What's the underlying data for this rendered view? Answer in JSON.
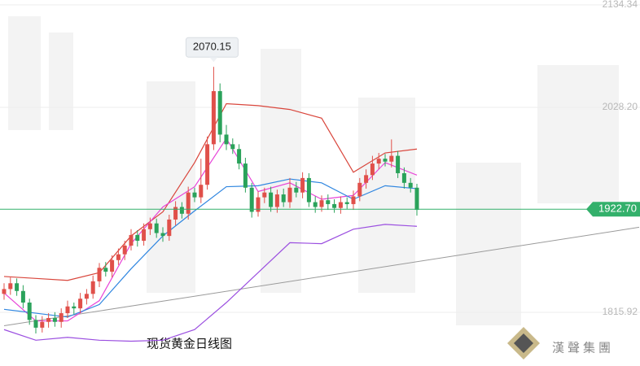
{
  "chart_data": {
    "type": "candlestick",
    "title": "现货黄金日线图",
    "watermark": "漢聲集團",
    "up_color": "#e0504a",
    "down_color": "#2aa25a",
    "ylim": [
      1760.3,
      2139.4
    ],
    "yticks": [
      2134.34,
      {
        "value": 2028.2,
        "label": "2028.20"
      },
      1815.92
    ],
    "grid": true,
    "current_price": {
      "value": 1922.7,
      "label": "1922.70",
      "color": "#33b06b"
    },
    "annotate_high_index": 33,
    "open": [
      1835,
      1840,
      1846,
      1838,
      1826,
      1808,
      1800,
      1806,
      1810,
      1806,
      1815,
      1822,
      1820,
      1830,
      1835,
      1848,
      1862,
      1858,
      1870,
      1876,
      1885,
      1896,
      1890,
      1902,
      1908,
      1898,
      1895,
      1912,
      1925,
      1918,
      1940,
      1935,
      1948,
      1990,
      2045,
      2000,
      1990,
      1985,
      1970,
      1945,
      1920,
      1935,
      1940,
      1925,
      1938,
      1930,
      1945,
      1940,
      1955,
      1930,
      1925,
      1932,
      1928,
      1924,
      1930,
      1928,
      1936,
      1950,
      1958,
      1970,
      1975,
      1972,
      1978,
      1960,
      1950,
      1945
    ],
    "high": [
      1846,
      1852,
      1851,
      1844,
      1830,
      1813,
      1812,
      1815,
      1816,
      1820,
      1828,
      1826,
      1836,
      1840,
      1854,
      1867,
      1868,
      1875,
      1882,
      1890,
      1902,
      1901,
      1908,
      1914,
      1913,
      1904,
      1917,
      1931,
      1930,
      1946,
      1945,
      1975,
      1998,
      2070.15,
      2053,
      2010,
      1996,
      1990,
      1976,
      1950,
      1941,
      1945,
      1946,
      1943,
      1944,
      1955,
      1951,
      1961,
      1960,
      1936,
      1937,
      1938,
      1933,
      1936,
      1935,
      1942,
      1955,
      1964,
      1978,
      1981,
      1980,
      1995,
      1983,
      1966,
      1955,
      1949
    ],
    "low": [
      1829,
      1834,
      1833,
      1820,
      1803,
      1794,
      1795,
      1800,
      1801,
      1800,
      1810,
      1814,
      1815,
      1824,
      1830,
      1842,
      1853,
      1852,
      1865,
      1870,
      1880,
      1884,
      1885,
      1896,
      1893,
      1889,
      1890,
      1906,
      1913,
      1912,
      1930,
      1929,
      1943,
      1984,
      1992,
      1984,
      1980,
      1964,
      1940,
      1914,
      1915,
      1929,
      1920,
      1919,
      1925,
      1924,
      1935,
      1934,
      1925,
      1919,
      1920,
      1922,
      1919,
      1918,
      1923,
      1922,
      1931,
      1944,
      1953,
      1964,
      1967,
      1966,
      1955,
      1944,
      1940,
      1916
    ],
    "close": [
      1840,
      1846,
      1838,
      1826,
      1808,
      1800,
      1806,
      1810,
      1806,
      1815,
      1822,
      1820,
      1830,
      1835,
      1848,
      1862,
      1858,
      1870,
      1876,
      1885,
      1896,
      1890,
      1902,
      1908,
      1898,
      1895,
      1912,
      1925,
      1918,
      1940,
      1935,
      1948,
      1990,
      2045,
      2000,
      1990,
      1985,
      1970,
      1945,
      1920,
      1935,
      1940,
      1925,
      1938,
      1930,
      1945,
      1940,
      1955,
      1930,
      1925,
      1932,
      1928,
      1924,
      1930,
      1928,
      1936,
      1950,
      1958,
      1970,
      1975,
      1972,
      1978,
      1960,
      1950,
      1945,
      1922
    ],
    "overlay_x": [
      0,
      5,
      10,
      15,
      20,
      25,
      30,
      35,
      40,
      45,
      50,
      55,
      60,
      65
    ],
    "overlays": [
      {
        "color": "#d9463c",
        "values": [
          1853,
          1851,
          1849,
          1857,
          1895,
          1920,
          1971,
          2032,
          2030,
          2026,
          2017,
          1961,
          1981,
          1985
        ]
      },
      {
        "color": "#9b4fe0",
        "values": [
          1798,
          1787,
          1790,
          1787,
          1786,
          1787,
          1798,
          1826,
          1857,
          1888,
          1887,
          1902,
          1907,
          1905
        ]
      },
      {
        "color": "#e845d8",
        "values": [
          1836,
          1807,
          1807,
          1828,
          1887,
          1925,
          1946,
          1996,
          1941,
          1950,
          1933,
          1937,
          1971,
          1958
        ]
      },
      {
        "color": "#2f86e0",
        "values": [
          1819,
          1815,
          1811,
          1824,
          1861,
          1895,
          1921,
          1946,
          1947,
          1954,
          1950,
          1933,
          1947,
          1944
        ]
      }
    ],
    "trendline": {
      "x": [
        0,
        100
      ],
      "values": [
        1802,
        1904
      ],
      "color": "#9a9a9a"
    }
  }
}
